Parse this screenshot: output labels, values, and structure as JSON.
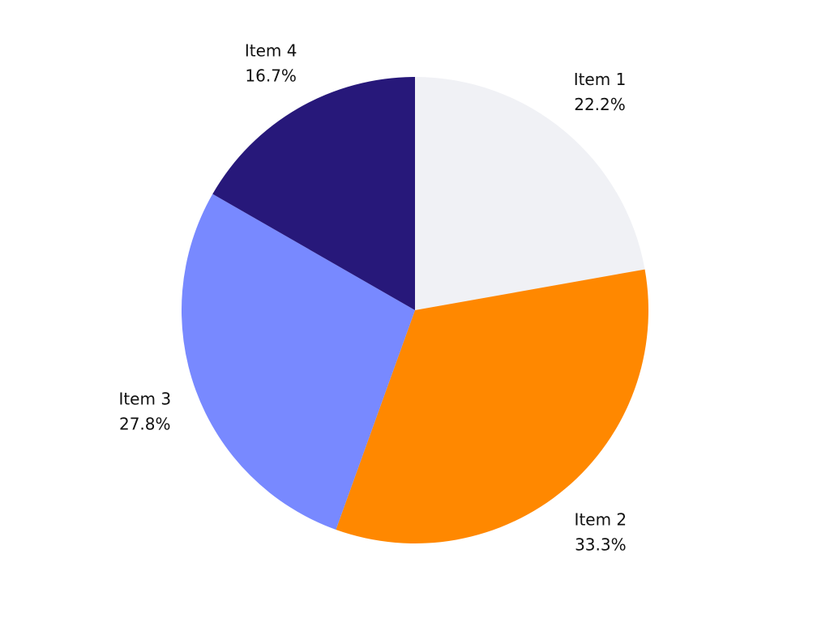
{
  "chart_data": {
    "type": "pie",
    "categories": [
      "Item 1",
      "Item 2",
      "Item 3",
      "Item 4"
    ],
    "values": [
      22.2,
      33.3,
      27.8,
      16.7
    ],
    "value_labels": [
      "22.2%",
      "33.3%",
      "27.8%",
      "16.7%"
    ],
    "colors": [
      "#f0f1f5",
      "#ff8800",
      "#7889ff",
      "#27187a"
    ],
    "start_angle_deg": 0,
    "direction": "clockwise",
    "legend": "none"
  }
}
